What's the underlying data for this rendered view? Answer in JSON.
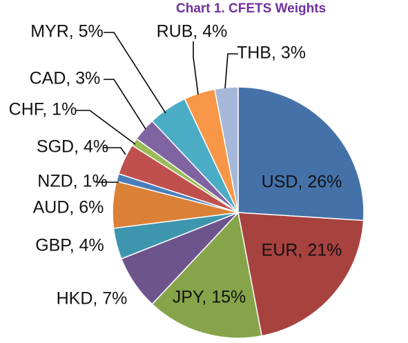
{
  "chart_data": {
    "type": "pie",
    "title": "Chart 1. CFETS Weights",
    "title_color": "#7030A0",
    "slices": [
      {
        "label": "USD",
        "value": 26,
        "display": "USD, 26%",
        "color": "#4472A8"
      },
      {
        "label": "EUR",
        "value": 21,
        "display": "EUR, 21%",
        "color": "#A8423F"
      },
      {
        "label": "JPY",
        "value": 15,
        "display": "JPY, 15%",
        "color": "#86A44A"
      },
      {
        "label": "HKD",
        "value": 7,
        "display": "HKD, 7%",
        "color": "#6E548D"
      },
      {
        "label": "GBP",
        "value": 4,
        "display": "GBP, 4%",
        "color": "#3D96AE"
      },
      {
        "label": "AUD",
        "value": 6,
        "display": "AUD, 6%",
        "color": "#DA8137"
      },
      {
        "label": "NZD",
        "value": 1,
        "display": "NZD, 1%",
        "color": "#4A7EBB"
      },
      {
        "label": "SGD",
        "value": 4,
        "display": "SGD, 4%",
        "color": "#C0504D"
      },
      {
        "label": "CHF",
        "value": 1,
        "display": "CHF, 1%",
        "color": "#9BBB59"
      },
      {
        "label": "CAD",
        "value": 3,
        "display": "CAD, 3%",
        "color": "#8064A2"
      },
      {
        "label": "MYR",
        "value": 5,
        "display": "MYR, 5%",
        "color": "#4BACC6"
      },
      {
        "label": "RUB",
        "value": 4,
        "display": "RUB, 4%",
        "color": "#F79646"
      },
      {
        "label": "THB",
        "value": 3,
        "display": "THB, 3%",
        "color": "#A5B8D9"
      }
    ],
    "legend": "none"
  }
}
